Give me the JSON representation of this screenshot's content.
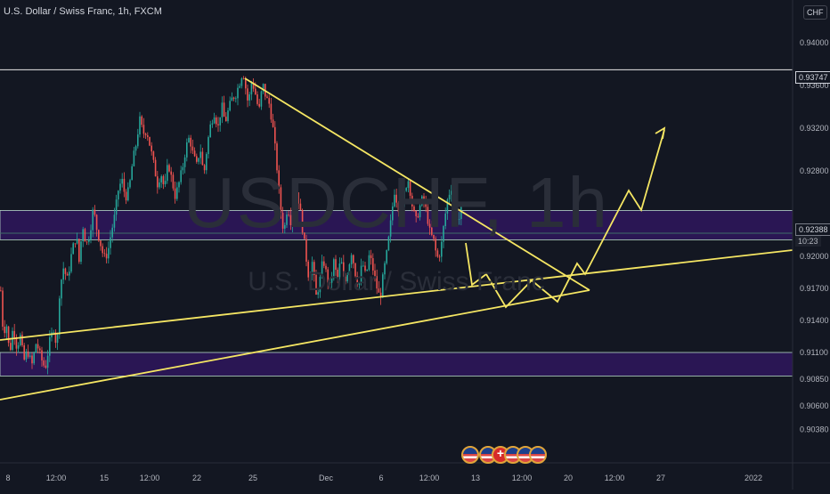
{
  "header": {
    "title": "U.S. Dollar / Swiss Franc, 1h, FXCM"
  },
  "watermark": {
    "symbol": "USDCHF, 1h",
    "description": "U.S. Dollar / Swiss Franc"
  },
  "price_axis": {
    "currency": "CHF",
    "ticks": [
      "0.94000",
      "0.93600",
      "0.93200",
      "0.92800",
      "0.92000",
      "0.91700",
      "0.91400",
      "0.91100",
      "0.90850",
      "0.90600",
      "0.90380"
    ],
    "high_label": "0.93747",
    "last_price_label": "0.92388",
    "countdown_label": "10:23"
  },
  "time_axis": {
    "ticks": [
      "8",
      "12:00",
      "15",
      "12:00",
      "22",
      "25",
      "Dec",
      "6",
      "12:00",
      "13",
      "12:00",
      "20",
      "12:00",
      "27",
      "2022"
    ]
  },
  "event_flags": [
    "us-flag-icon",
    "us-flag-icon",
    "swiss-flag-icon",
    "us-flag-icon",
    "us-flag-icon",
    "us-flag-icon"
  ],
  "colors": {
    "background": "#131722",
    "up_candle": "#26a69a",
    "down_candle": "#ef5350",
    "trendline": "#f5e663",
    "zone_fill": "#2a1654",
    "zone_border": "#b7d8c8",
    "level_line": "#e8e8e8"
  },
  "chart_data": {
    "type": "candlestick",
    "title": "U.S. Dollar / Swiss Franc, 1h, FXCM",
    "symbol": "USDCHF",
    "interval": "1h",
    "ylim": [
      0.9038,
      0.9418
    ],
    "grid": false,
    "x_ticks": [
      "8",
      "12:00",
      "15",
      "12:00",
      "22",
      "25",
      "Dec",
      "6",
      "12:00",
      "13",
      "12:00",
      "20",
      "12:00",
      "27",
      "2022"
    ],
    "y_ticks": [
      0.94,
      0.936,
      0.932,
      0.928,
      0.92,
      0.917,
      0.914,
      0.911,
      0.9085,
      0.906,
      0.9038
    ],
    "last_price": 0.92388,
    "high_level": 0.93747,
    "price_path": [
      [
        0,
        0.9168
      ],
      [
        3,
        0.9125
      ],
      [
        6,
        0.914
      ],
      [
        10,
        0.9108
      ],
      [
        14,
        0.9135
      ],
      [
        18,
        0.9115
      ],
      [
        22,
        0.9125
      ],
      [
        26,
        0.9102
      ],
      [
        30,
        0.9112
      ],
      [
        35,
        0.9098
      ],
      [
        40,
        0.912
      ],
      [
        45,
        0.9105
      ],
      [
        50,
        0.9095
      ],
      [
        55,
        0.912
      ],
      [
        60,
        0.9135
      ],
      [
        63,
        0.911
      ],
      [
        66,
        0.9165
      ],
      [
        70,
        0.919
      ],
      [
        75,
        0.9178
      ],
      [
        80,
        0.9205
      ],
      [
        85,
        0.922
      ],
      [
        88,
        0.9195
      ],
      [
        92,
        0.923
      ],
      [
        96,
        0.921
      ],
      [
        100,
        0.9222
      ],
      [
        104,
        0.9245
      ],
      [
        108,
        0.9225
      ],
      [
        112,
        0.9212
      ],
      [
        116,
        0.9198
      ],
      [
        120,
        0.9203
      ],
      [
        124,
        0.9222
      ],
      [
        128,
        0.9238
      ],
      [
        132,
        0.9262
      ],
      [
        136,
        0.9272
      ],
      [
        140,
        0.9255
      ],
      [
        144,
        0.9262
      ],
      [
        148,
        0.9288
      ],
      [
        152,
        0.9305
      ],
      [
        156,
        0.9328
      ],
      [
        160,
        0.9315
      ],
      [
        164,
        0.9318
      ],
      [
        168,
        0.9302
      ],
      [
        172,
        0.9285
      ],
      [
        176,
        0.9268
      ],
      [
        180,
        0.9278
      ],
      [
        184,
        0.9262
      ],
      [
        188,
        0.9288
      ],
      [
        192,
        0.9272
      ],
      [
        196,
        0.9256
      ],
      [
        200,
        0.9268
      ],
      [
        204,
        0.9282
      ],
      [
        208,
        0.9302
      ],
      [
        212,
        0.9312
      ],
      [
        216,
        0.9295
      ],
      [
        220,
        0.9285
      ],
      [
        224,
        0.9302
      ],
      [
        228,
        0.9275
      ],
      [
        232,
        0.9305
      ],
      [
        236,
        0.9325
      ],
      [
        240,
        0.9335
      ],
      [
        244,
        0.932
      ],
      [
        248,
        0.9342
      ],
      [
        252,
        0.9325
      ],
      [
        256,
        0.9338
      ],
      [
        260,
        0.9348
      ],
      [
        264,
        0.9352
      ],
      [
        268,
        0.9362
      ],
      [
        272,
        0.9374
      ],
      [
        275,
        0.9358
      ],
      [
        278,
        0.9342
      ],
      [
        282,
        0.9365
      ],
      [
        286,
        0.9352
      ],
      [
        290,
        0.9335
      ],
      [
        294,
        0.9362
      ],
      [
        298,
        0.9348
      ],
      [
        302,
        0.9342
      ],
      [
        306,
        0.9318
      ],
      [
        310,
        0.9285
      ],
      [
        314,
        0.9245
      ],
      [
        318,
        0.9222
      ],
      [
        322,
        0.9248
      ],
      [
        326,
        0.9232
      ],
      [
        330,
        0.9268
      ],
      [
        334,
        0.9255
      ],
      [
        338,
        0.9232
      ],
      [
        342,
        0.9205
      ],
      [
        346,
        0.918
      ],
      [
        350,
        0.9195
      ],
      [
        354,
        0.9162
      ],
      [
        358,
        0.9175
      ],
      [
        362,
        0.9198
      ],
      [
        366,
        0.9182
      ],
      [
        370,
        0.917
      ],
      [
        374,
        0.9195
      ],
      [
        378,
        0.9178
      ],
      [
        382,
        0.9198
      ],
      [
        386,
        0.9172
      ],
      [
        390,
        0.9188
      ],
      [
        394,
        0.9205
      ],
      [
        398,
        0.9185
      ],
      [
        402,
        0.9172
      ],
      [
        406,
        0.9195
      ],
      [
        410,
        0.918
      ],
      [
        414,
        0.9202
      ],
      [
        418,
        0.9188
      ],
      [
        422,
        0.9172
      ],
      [
        426,
        0.916
      ],
      [
        430,
        0.9185
      ],
      [
        434,
        0.9205
      ],
      [
        438,
        0.9232
      ],
      [
        442,
        0.9262
      ],
      [
        446,
        0.9248
      ],
      [
        450,
        0.9235
      ],
      [
        454,
        0.9265
      ],
      [
        458,
        0.9272
      ],
      [
        462,
        0.9248
      ],
      [
        466,
        0.9232
      ],
      [
        470,
        0.9245
      ],
      [
        474,
        0.9255
      ],
      [
        478,
        0.9242
      ],
      [
        482,
        0.9222
      ],
      [
        486,
        0.9215
      ],
      [
        490,
        0.9198
      ],
      [
        494,
        0.9205
      ],
      [
        498,
        0.9232
      ],
      [
        502,
        0.9255
      ],
      [
        506,
        0.9265
      ],
      [
        510,
        0.9248
      ],
      [
        514,
        0.9232
      ],
      [
        518,
        0.9248
      ],
      [
        521,
        0.9239
      ]
    ],
    "levels": [
      {
        "name": "high",
        "price": 0.93747
      },
      {
        "name": "upper-zone",
        "price_top": 0.9243,
        "price_bottom": 0.92155
      },
      {
        "name": "lower-zone",
        "price_top": 0.911,
        "price_bottom": 0.9088
      }
    ]
  }
}
